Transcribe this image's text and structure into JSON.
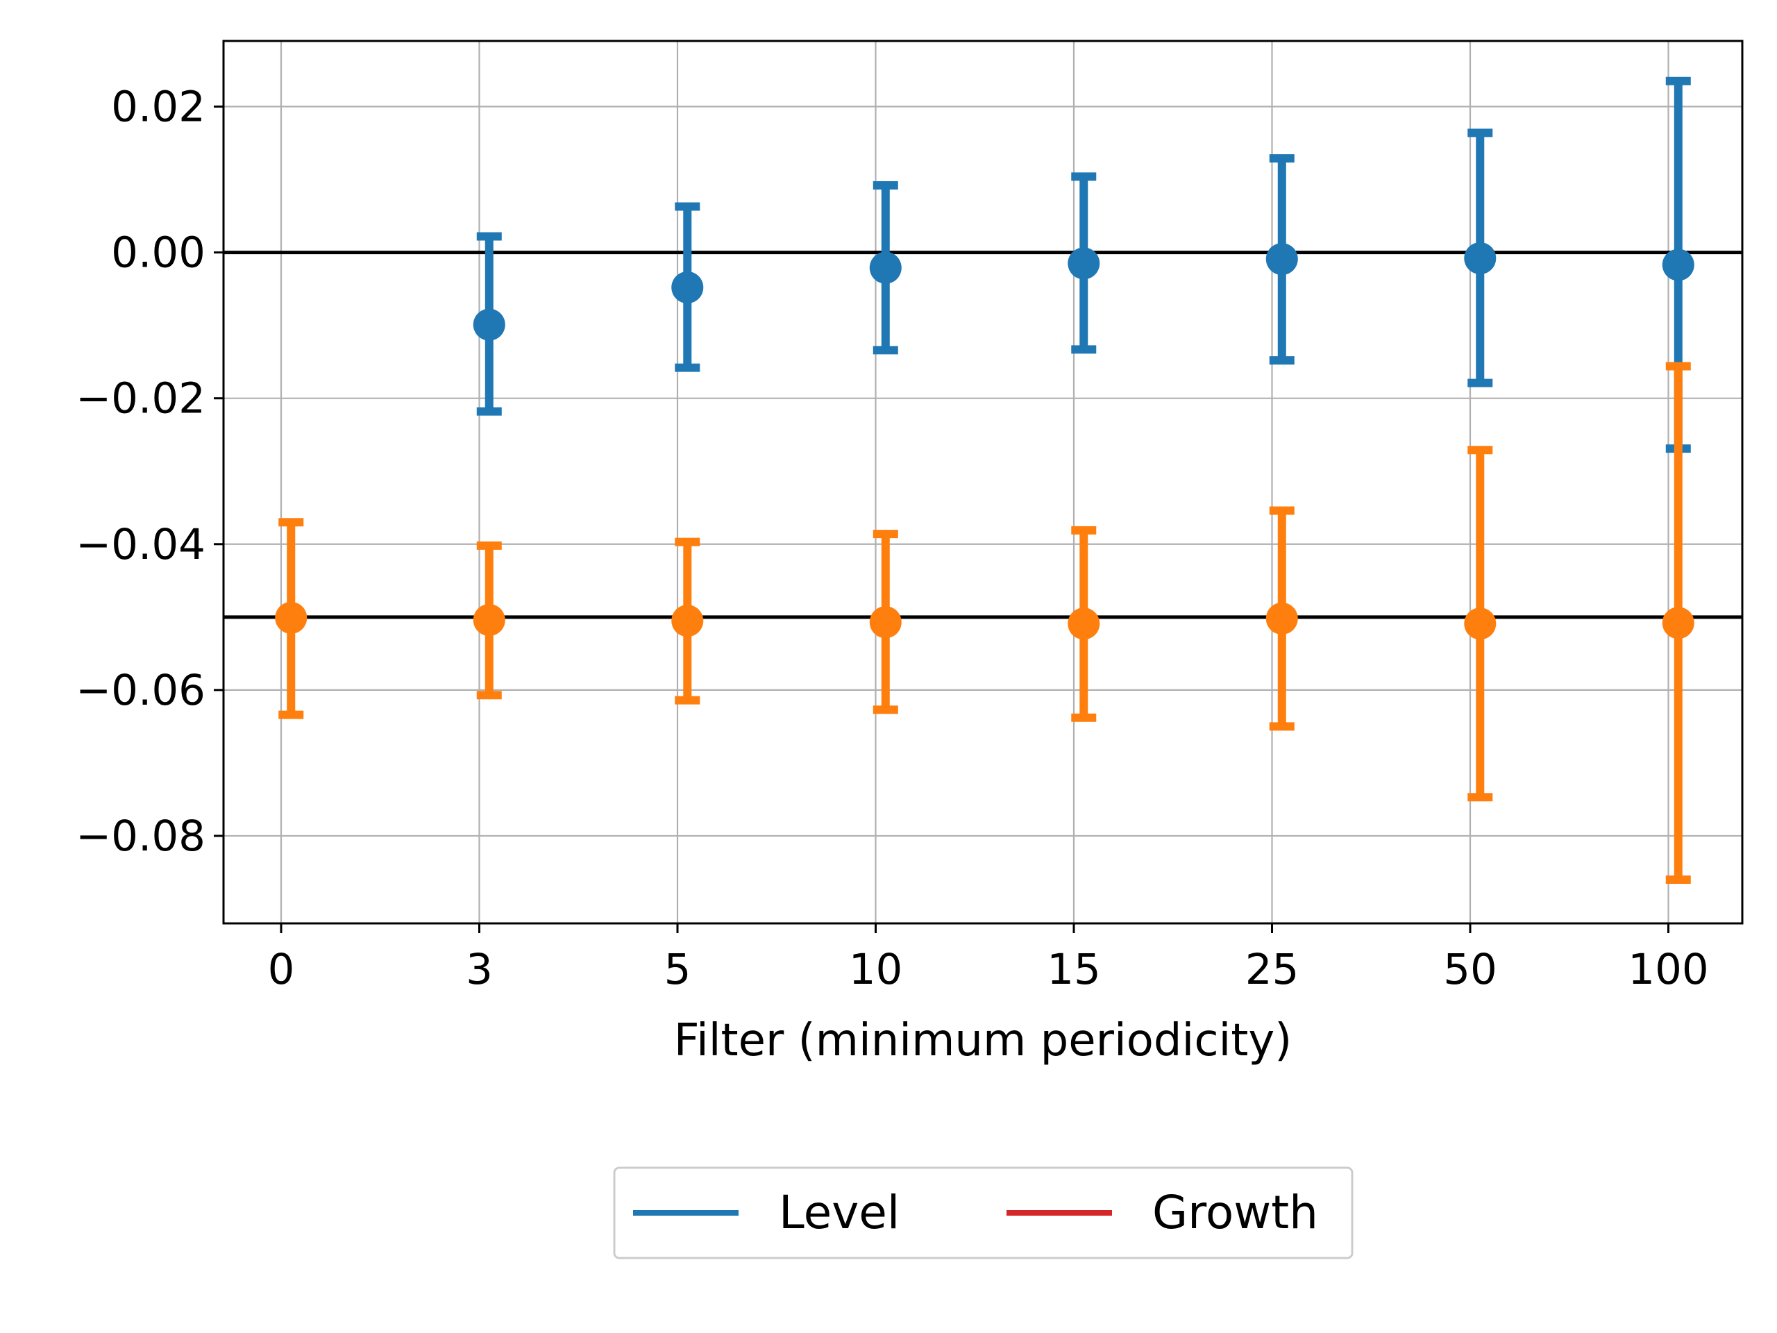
{
  "chart_data": {
    "type": "scatter",
    "title": "",
    "xlabel": "Filter (minimum periodicity)",
    "ylabel": "",
    "categories": [
      "0",
      "3",
      "5",
      "10",
      "15",
      "25",
      "50",
      "100"
    ],
    "ylim": [
      -0.092,
      0.029
    ],
    "yticks": [
      0.02,
      0.0,
      -0.02,
      -0.04,
      -0.06,
      -0.08
    ],
    "ytick_labels": [
      "0.02",
      "0.00",
      "−0.02",
      "−0.04",
      "−0.06",
      "−0.08"
    ],
    "grid": true,
    "reference_lines": [
      0.0,
      -0.05
    ],
    "series": [
      {
        "name": "Level",
        "color": "#1f77b4",
        "offset": 0.05,
        "points": [
          {
            "category": "3",
            "y": -0.0099,
            "lower": -0.0218,
            "upper": 0.0022
          },
          {
            "category": "5",
            "y": -0.0048,
            "lower": -0.0158,
            "upper": 0.0063
          },
          {
            "category": "10",
            "y": -0.0021,
            "lower": -0.0134,
            "upper": 0.0092
          },
          {
            "category": "15",
            "y": -0.0015,
            "lower": -0.0133,
            "upper": 0.0104
          },
          {
            "category": "25",
            "y": -0.0009,
            "lower": -0.0148,
            "upper": 0.0129
          },
          {
            "category": "50",
            "y": -0.0008,
            "lower": -0.0179,
            "upper": 0.0164
          },
          {
            "category": "100",
            "y": -0.0017,
            "lower": -0.0269,
            "upper": 0.0235
          }
        ]
      },
      {
        "name": "",
        "color": "#ff7f0e",
        "offset": 0.05,
        "points": [
          {
            "category": "0",
            "y": -0.0501,
            "lower": -0.0634,
            "upper": -0.037
          },
          {
            "category": "3",
            "y": -0.0504,
            "lower": -0.0607,
            "upper": -0.0402
          },
          {
            "category": "5",
            "y": -0.0505,
            "lower": -0.0614,
            "upper": -0.0397
          },
          {
            "category": "10",
            "y": -0.0507,
            "lower": -0.0627,
            "upper": -0.0386
          },
          {
            "category": "15",
            "y": -0.0509,
            "lower": -0.0638,
            "upper": -0.0381
          },
          {
            "category": "25",
            "y": -0.0502,
            "lower": -0.065,
            "upper": -0.0354
          },
          {
            "category": "50",
            "y": -0.0509,
            "lower": -0.0747,
            "upper": -0.0271
          },
          {
            "category": "100",
            "y": -0.0508,
            "lower": -0.086,
            "upper": -0.0156
          }
        ]
      }
    ],
    "legend": {
      "placement": "bottom-center",
      "entries": [
        {
          "label": "Level",
          "color": "#1f77b4"
        },
        {
          "label": "Growth",
          "color": "#d62728"
        }
      ]
    }
  }
}
